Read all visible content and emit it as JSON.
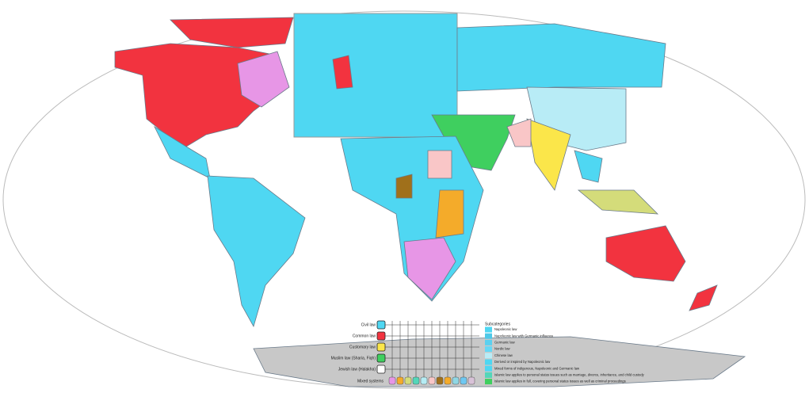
{
  "legend": {
    "systems": [
      {
        "label": "Civil law",
        "color": "#4fd7f2"
      },
      {
        "label": "Common law",
        "color": "#f2333f"
      },
      {
        "label": "Customary law",
        "color": "#fbe64a"
      },
      {
        "label": "Muslim law (Sharia, Fiqh)",
        "color": "#3fcf5f"
      },
      {
        "label": "Jewish law (Halakha)",
        "color": "#ffffff"
      }
    ],
    "mixed": {
      "label": "Mixed systems",
      "colors": [
        "#e796e6",
        "#f4ab2a",
        "#d4dc7a",
        "#53d6b9",
        "#b5ecf4",
        "#f9c6c7",
        "#a0701b",
        "#f4ab2a",
        "#8fd7e4",
        "#6ec8f2",
        "#d8c2d8"
      ]
    },
    "subcategories": {
      "title": "Subcategories",
      "items": [
        {
          "label": "Napoleonic law",
          "color": "#4fd7f2"
        },
        {
          "label": "Napoleonic law with Germanic influence",
          "color": "#4fc9e8"
        },
        {
          "label": "Germanic law",
          "color": "#5bd0ef"
        },
        {
          "label": "Nordic law",
          "color": "#66d8f5"
        },
        {
          "label": "Chinese law",
          "color": "#b8ecf6"
        },
        {
          "label": "Derived or inspired by Napoleonic law",
          "color": "#4fd7f2"
        },
        {
          "label": "Mixed forms of indigenous, Napoleonic and Germanic law",
          "color": "#4fd7f2"
        },
        {
          "label": "Islamic law applies to personal status issues such as marriage, divorce, inheritance, and child custody",
          "color": "#53d6b9"
        },
        {
          "label": "Islamic law applies in full, covering personal status issues as well as criminal proceedings",
          "color": "#3fcf5f"
        }
      ]
    }
  }
}
